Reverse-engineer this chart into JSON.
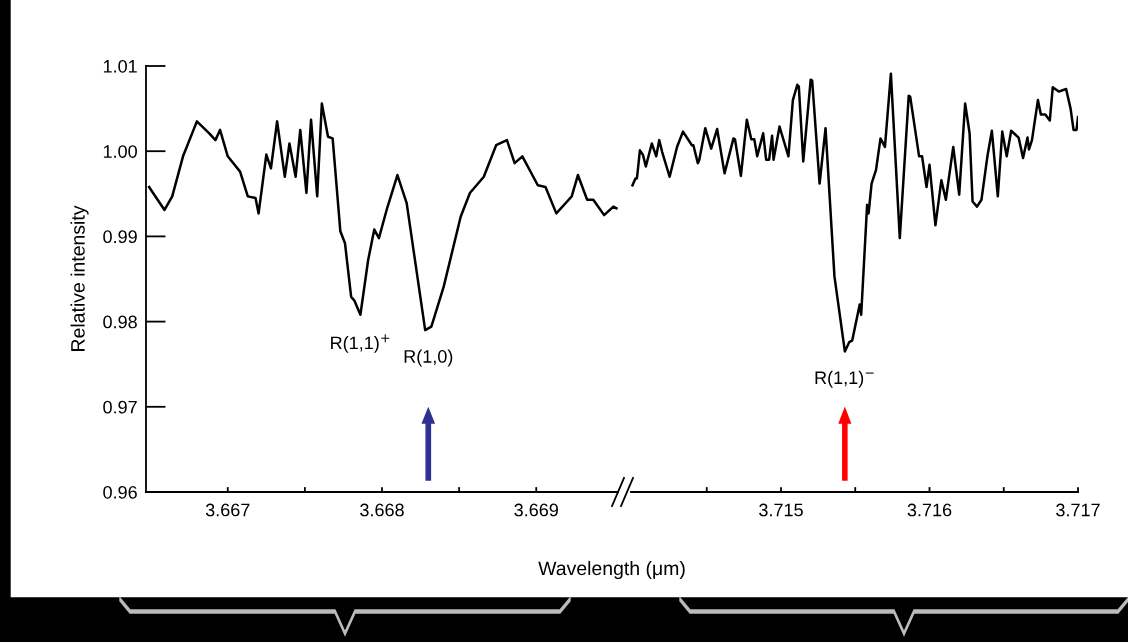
{
  "chart_data": [
    {
      "type": "line",
      "ylabel": "Relative intensity",
      "xlabel": "Wavelength (μm)",
      "x": [
        3.66649,
        3.66659,
        3.66664,
        3.66671,
        3.6668,
        3.66688,
        3.66692,
        3.66695,
        3.667,
        3.66708,
        3.66713,
        3.66718,
        3.6672,
        3.66725,
        3.66728,
        3.66732,
        3.66737,
        3.6674,
        3.66744,
        3.66747,
        3.66751,
        3.66754,
        3.66758,
        3.66761,
        3.66765,
        3.66768,
        3.66773,
        3.66776,
        3.6678,
        3.66782,
        3.66786,
        3.66791,
        3.66795,
        3.66798,
        3.66803,
        3.6681,
        3.66816,
        3.66828,
        3.66832,
        3.6684,
        3.66851,
        3.66857,
        3.66866,
        3.66874,
        3.66881,
        3.66886,
        3.66891,
        3.66901,
        3.66906,
        3.66913,
        3.6692,
        3.66923,
        3.66927,
        3.66933,
        3.66937,
        3.66944,
        3.6695,
        3.66952
      ],
      "series": [
        {
          "color": "#000000",
          "values": [
            0.9958,
            0.9931,
            0.9947,
            0.9994,
            1.0035,
            1.0021,
            1.0013,
            1.0025,
            0.9994,
            0.9976,
            0.9947,
            0.9945,
            0.9927,
            0.9996,
            0.998,
            1.0035,
            0.997,
            1.0009,
            0.997,
            1.0025,
            0.9951,
            1.0037,
            0.9947,
            1.0056,
            1.0017,
            1.0015,
            0.9906,
            0.9892,
            0.9829,
            0.9825,
            0.9808,
            0.9872,
            0.9908,
            0.9898,
            0.9931,
            0.9972,
            0.9939,
            0.979,
            0.9794,
            0.9841,
            0.9923,
            0.9951,
            0.997,
            1.0007,
            1.0013,
            0.9986,
            0.9994,
            0.996,
            0.9958,
            0.9927,
            0.9941,
            0.9947,
            0.9972,
            0.9943,
            0.9943,
            0.9925,
            0.9935,
            0.9933
          ]
        }
      ],
      "xlim": [
        3.66647,
        3.66953
      ],
      "xticks": [
        3.667,
        {
          "value": 3.6675,
          "label": null
        },
        3.668,
        {
          "value": 3.6685,
          "label": null
        },
        3.669
      ],
      "ylim": [
        0.96,
        1.01
      ],
      "yticks": [
        0.96,
        0.97,
        0.98,
        0.99,
        {
          "value": 1.0,
          "label": "1.00"
        },
        1.01
      ],
      "annotations": [
        {
          "text": "R(1,1)$^{+}$",
          "x": 3.66786,
          "y": 0.9808
        },
        {
          "text": "R(1,0)",
          "x": 3.6683,
          "y": 0.979
        }
      ]
    },
    {
      "type": "line",
      "tick_labels": "x",
      "x": [
        3.714,
        3.71402,
        3.71403,
        3.71405,
        3.71407,
        3.71409,
        3.71413,
        3.71416,
        3.71418,
        3.7142,
        3.71425,
        3.7143,
        3.71434,
        3.7144,
        3.71441,
        3.71444,
        3.71445,
        3.71449,
        3.71453,
        3.71457,
        3.71462,
        3.71468,
        3.71469,
        3.71473,
        3.71477,
        3.7148,
        3.71482,
        3.71484,
        3.71488,
        3.7149,
        3.71492,
        3.71494,
        3.71495,
        3.71499,
        3.71505,
        3.71508,
        3.71511,
        3.71512,
        3.71515,
        3.7152,
        3.71521,
        3.71526,
        3.7153,
        3.71536,
        3.71543,
        3.71546,
        3.71548,
        3.71553,
        3.71554,
        3.71558,
        3.71559,
        3.71561,
        3.71564,
        3.71567,
        3.7157,
        3.71574,
        3.7158,
        3.71586,
        3.71587,
        3.71593,
        3.71595,
        3.71598,
        3.716,
        3.71604,
        3.71608,
        3.71611,
        3.71616,
        3.7162,
        3.71624,
        3.71627,
        3.71629,
        3.71632,
        3.71635,
        3.71639,
        3.71642,
        3.71646,
        3.71649,
        3.71652,
        3.71655,
        3.7166,
        3.71663,
        3.71666,
        3.71667,
        3.71669,
        3.71673,
        3.71675,
        3.71678,
        3.71681,
        3.71683,
        3.71687,
        3.71692,
        3.71695,
        3.71697,
        3.71699,
        3.717
      ],
      "series": [
        {
          "color": "#000000",
          "values": [
            0.996,
            0.9968,
            0.9968,
            1.0001,
            0.9996,
            0.9982,
            1.0009,
            0.9994,
            1.0013,
            0.9999,
            0.997,
            1.0005,
            1.0023,
            1.0007,
            1.0007,
            0.9986,
            0.999,
            1.0027,
            1.0003,
            1.0026,
            0.9974,
            1.0015,
            1.0014,
            0.9971,
            1.0037,
            1.0014,
            1.0014,
            0.9994,
            1.0021,
            0.999,
            0.999,
            1.0018,
            0.999,
            1.0029,
            0.9994,
            1.006,
            1.0078,
            1.0076,
            0.9988,
            1.0084,
            1.0083,
            0.9962,
            1.0027,
            0.9853,
            0.9765,
            0.9776,
            0.9778,
            0.982,
            0.9808,
            0.9937,
            0.9927,
            0.9962,
            0.9978,
            1.0015,
            1.0005,
            1.0091,
            0.9898,
            1.0065,
            1.0064,
            0.9994,
            0.9994,
            0.9958,
            0.9984,
            0.9913,
            0.9966,
            0.9943,
            1.0005,
            0.9949,
            1.0056,
            1.0021,
            0.9941,
            0.9935,
            0.9943,
            0.9994,
            1.0024,
            0.9947,
            1.0023,
            0.9994,
            1.0024,
            1.0016,
            0.9992,
            1.0016,
            1.0002,
            1.0013,
            1.006,
            1.0043,
            1.0043,
            1.0036,
            1.0075,
            1.007,
            1.0073,
            1.005,
            1.0025,
            1.0025,
            1.004
          ]
        }
      ],
      "xlim": [
        3.71399,
        3.717
      ],
      "xticks": [
        {
          "value": 3.7145,
          "label": null
        },
        3.715,
        {
          "value": 3.7155,
          "label": null
        },
        3.716,
        {
          "value": 3.7165,
          "label": null
        },
        3.717
      ],
      "ylim": [
        0.96,
        1.01
      ],
      "annotations": [
        {
          "text": "R(1,1)$^{−}$",
          "x": 3.71543,
          "y": 0.9765
        }
      ]
    }
  ]
}
